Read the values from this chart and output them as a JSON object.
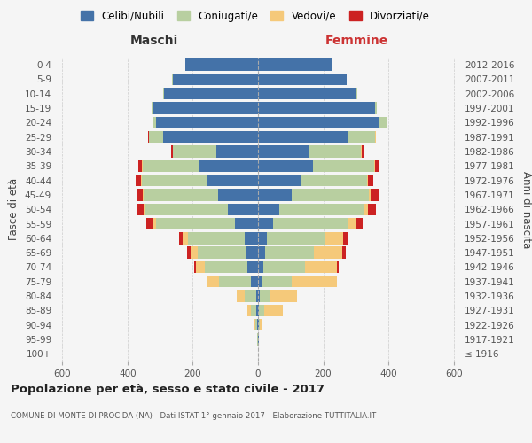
{
  "age_groups": [
    "100+",
    "95-99",
    "90-94",
    "85-89",
    "80-84",
    "75-79",
    "70-74",
    "65-69",
    "60-64",
    "55-59",
    "50-54",
    "45-49",
    "40-44",
    "35-39",
    "30-34",
    "25-29",
    "20-24",
    "15-19",
    "10-14",
    "5-9",
    "0-4"
  ],
  "birth_years": [
    "≤ 1916",
    "1917-1921",
    "1922-1926",
    "1927-1931",
    "1932-1936",
    "1937-1941",
    "1942-1946",
    "1947-1951",
    "1952-1956",
    "1957-1961",
    "1962-1966",
    "1967-1971",
    "1972-1976",
    "1977-1981",
    "1982-1986",
    "1987-1991",
    "1992-1996",
    "1997-2001",
    "2002-2006",
    "2007-2011",
    "2012-2016"
  ],
  "maschi": {
    "celibi": [
      0,
      1,
      2,
      5,
      6,
      22,
      32,
      36,
      42,
      72,
      92,
      122,
      158,
      182,
      128,
      292,
      312,
      322,
      288,
      262,
      222
    ],
    "coniugati": [
      0,
      1,
      5,
      16,
      36,
      98,
      132,
      148,
      172,
      242,
      252,
      228,
      198,
      172,
      132,
      42,
      12,
      4,
      2,
      1,
      1
    ],
    "vedovi": [
      0,
      1,
      4,
      12,
      22,
      36,
      26,
      22,
      16,
      6,
      6,
      4,
      2,
      1,
      1,
      0,
      0,
      0,
      0,
      0,
      0
    ],
    "divorziati": [
      0,
      0,
      0,
      0,
      0,
      0,
      6,
      12,
      12,
      22,
      22,
      16,
      16,
      12,
      6,
      4,
      0,
      0,
      0,
      0,
      0
    ]
  },
  "femmine": {
    "nubili": [
      0,
      2,
      2,
      4,
      6,
      12,
      16,
      22,
      26,
      46,
      66,
      102,
      132,
      168,
      158,
      278,
      372,
      358,
      302,
      272,
      228
    ],
    "coniugate": [
      0,
      0,
      4,
      16,
      32,
      92,
      128,
      148,
      178,
      232,
      258,
      238,
      202,
      188,
      158,
      82,
      22,
      6,
      2,
      1,
      1
    ],
    "vedove": [
      0,
      2,
      8,
      56,
      82,
      138,
      98,
      88,
      58,
      22,
      12,
      6,
      4,
      2,
      1,
      1,
      0,
      0,
      0,
      0,
      0
    ],
    "divorziate": [
      0,
      0,
      0,
      0,
      0,
      0,
      6,
      12,
      16,
      22,
      26,
      26,
      16,
      12,
      6,
      2,
      1,
      0,
      0,
      0,
      0
    ]
  },
  "colors": {
    "celibi": "#4472a8",
    "coniugati": "#b8cfa0",
    "vedovi": "#f5c97a",
    "divorziati": "#cc2222"
  },
  "xlim": 620,
  "title_main": "Popolazione per età, sesso e stato civile - 2017",
  "title_sub": "COMUNE DI MONTE DI PROCIDA (NA) - Dati ISTAT 1° gennaio 2017 - Elaborazione TUTTITALIA.IT",
  "legend_labels": [
    "Celibi/Nubili",
    "Coniugati/e",
    "Vedovi/e",
    "Divorziati/e"
  ],
  "bg_color": "#f5f5f5",
  "grid_color": "#cccccc"
}
